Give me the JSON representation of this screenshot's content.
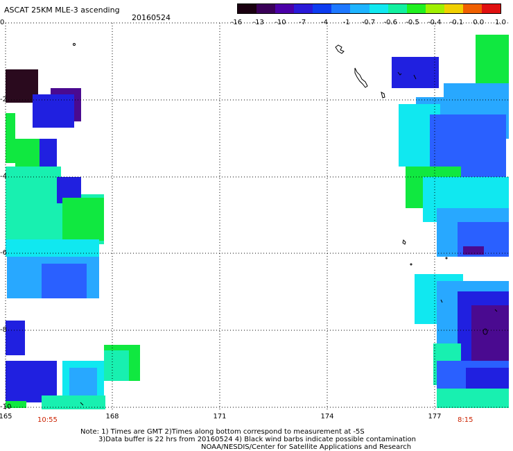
{
  "header": {
    "title": "ASCAT 25KM MLE-3 ascending",
    "date": "20160524"
  },
  "colorbar": {
    "labels": [
      "-16",
      "-13",
      "-10",
      "-7",
      "-4",
      "-1",
      "-0.7",
      "-0.6",
      "-0.5",
      "-0.4",
      "-0.1",
      "0.0",
      "1.0"
    ],
    "colors": [
      "#1a0010",
      "#3a0058",
      "#4b00a8",
      "#2a1ad8",
      "#0d3cf0",
      "#1e78ff",
      "#1eb4ff",
      "#11e8f0",
      "#12f0a0",
      "#20f020",
      "#a0f000",
      "#f0d000",
      "#f06000",
      "#e01010"
    ]
  },
  "axes": {
    "lon_labels": [
      "165",
      "168",
      "171",
      "174",
      "177"
    ],
    "lat_labels": [
      "0",
      "-2",
      "-4",
      "-6",
      "-8",
      "-10"
    ]
  },
  "times": [
    "10:55",
    "8:15"
  ],
  "notes": [
    "Note: 1) Times are GMT 2)Times along bottom correspond to measurement at -5S",
    "3)Data buffer is 22 hrs from 20160524 4) Black wind barbs indicate possible contamination",
    "NOAA/NESDIS/Center for Satellite Applications and Research"
  ],
  "palette": {
    "dark": "#2a0a1e",
    "purple": "#4a0a90",
    "blue": "#2020e0",
    "mid_blue": "#2a60ff",
    "sky": "#28a8ff",
    "cyan": "#10e8f0",
    "seafoam": "#18f0b0",
    "green": "#10e840"
  }
}
